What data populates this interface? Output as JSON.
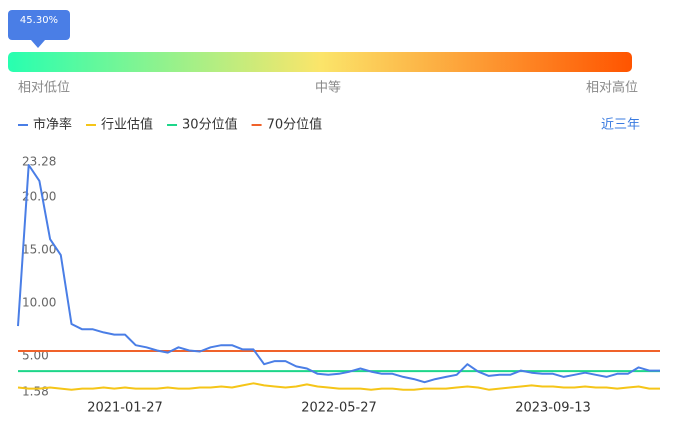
{
  "gauge": {
    "percentile": 45.3,
    "percentile_label": "45.30%",
    "low_label": "相对低位",
    "mid_label": "中等",
    "high_label": "相对高位"
  },
  "range_link": "近三年",
  "chart_data": {
    "type": "line",
    "categories": [
      null,
      null,
      null,
      null,
      null,
      null,
      null,
      null,
      null,
      null,
      "2021-01-27",
      null,
      null,
      null,
      null,
      null,
      null,
      null,
      null,
      null,
      null,
      null,
      null,
      null,
      null,
      null,
      null,
      null,
      null,
      null,
      "2022-05-27",
      null,
      null,
      null,
      null,
      null,
      null,
      null,
      null,
      null,
      null,
      null,
      null,
      null,
      null,
      null,
      null,
      null,
      null,
      null,
      "2023-09-13",
      null,
      null,
      null,
      null,
      null,
      null,
      null,
      null,
      null,
      null
    ],
    "series": [
      {
        "name": "市净率",
        "color": "#4a7ee6",
        "values": [
          7.8,
          23.0,
          21.5,
          16.0,
          14.5,
          8.0,
          7.5,
          7.5,
          7.2,
          7.0,
          7.0,
          6.0,
          5.8,
          5.5,
          5.3,
          5.8,
          5.5,
          5.4,
          5.8,
          6.0,
          6.0,
          5.6,
          5.6,
          4.2,
          4.5,
          4.5,
          4.0,
          3.8,
          3.3,
          3.2,
          3.3,
          3.5,
          3.8,
          3.5,
          3.3,
          3.3,
          3.0,
          2.8,
          2.5,
          2.8,
          3.0,
          3.2,
          4.2,
          3.5,
          3.1,
          3.2,
          3.2,
          3.6,
          3.4,
          3.3,
          3.3,
          3.0,
          3.2,
          3.4,
          3.2,
          3.0,
          3.3,
          3.3,
          3.9,
          3.6,
          3.6
        ]
      },
      {
        "name": "行业估值",
        "color": "#f5c518",
        "values": [
          2.0,
          1.9,
          1.9,
          2.0,
          1.9,
          1.8,
          1.9,
          1.9,
          2.0,
          1.9,
          2.0,
          1.9,
          1.9,
          1.9,
          2.0,
          1.9,
          1.9,
          2.0,
          2.0,
          2.1,
          2.0,
          2.2,
          2.4,
          2.2,
          2.1,
          2.0,
          2.1,
          2.3,
          2.1,
          2.0,
          1.9,
          1.9,
          1.9,
          1.8,
          1.9,
          1.9,
          1.8,
          1.8,
          1.9,
          1.9,
          1.9,
          2.0,
          2.1,
          2.0,
          1.8,
          1.9,
          2.0,
          2.1,
          2.2,
          2.1,
          2.1,
          2.0,
          2.0,
          2.1,
          2.0,
          2.0,
          1.9,
          2.0,
          2.1,
          1.9,
          1.9
        ]
      },
      {
        "name": "30分位值",
        "color": "#1dd68a",
        "values": [
          3.55,
          3.55,
          3.55,
          3.55,
          3.55,
          3.55,
          3.55,
          3.55,
          3.55,
          3.55,
          3.55,
          3.55,
          3.55,
          3.55,
          3.55,
          3.55,
          3.55,
          3.55,
          3.55,
          3.55,
          3.55,
          3.55,
          3.55,
          3.55,
          3.55,
          3.55,
          3.55,
          3.55,
          3.55,
          3.55,
          3.55,
          3.55,
          3.55,
          3.55,
          3.55,
          3.55,
          3.55,
          3.55,
          3.55,
          3.55,
          3.55,
          3.55,
          3.55,
          3.55,
          3.55,
          3.55,
          3.55,
          3.55,
          3.55,
          3.55,
          3.55,
          3.55,
          3.55,
          3.55,
          3.55,
          3.55,
          3.55,
          3.55,
          3.55,
          3.55,
          3.55
        ]
      },
      {
        "name": "70分位值",
        "color": "#f0622a",
        "values": [
          5.45,
          5.45,
          5.45,
          5.45,
          5.45,
          5.45,
          5.45,
          5.45,
          5.45,
          5.45,
          5.45,
          5.45,
          5.45,
          5.45,
          5.45,
          5.45,
          5.45,
          5.45,
          5.45,
          5.45,
          5.45,
          5.45,
          5.45,
          5.45,
          5.45,
          5.45,
          5.45,
          5.45,
          5.45,
          5.45,
          5.45,
          5.45,
          5.45,
          5.45,
          5.45,
          5.45,
          5.45,
          5.45,
          5.45,
          5.45,
          5.45,
          5.45,
          5.45,
          5.45,
          5.45,
          5.45,
          5.45,
          5.45,
          5.45,
          5.45,
          5.45,
          5.45,
          5.45,
          5.45,
          5.45,
          5.45,
          5.45,
          5.45,
          5.45,
          5.45,
          5.45
        ]
      }
    ],
    "ylim": [
      1.58,
      23.28
    ],
    "yticks": [
      1.58,
      {
        "value": 5,
        "label": "5.00"
      },
      {
        "value": 10,
        "label": "10.00"
      },
      {
        "value": 15,
        "label": "15.00"
      },
      {
        "value": 20,
        "label": "20.00"
      },
      23.28
    ]
  }
}
